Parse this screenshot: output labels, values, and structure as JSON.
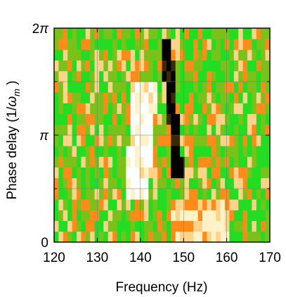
{
  "chart_data": {
    "type": "heatmap",
    "title": "",
    "xlabel": "Frequency (Hz)",
    "ylabel_parts": {
      "prefix": "Phase delay (1/",
      "omega": "ω",
      "sub": "m",
      "suffix": " )"
    },
    "x_ticks": [
      "120",
      "130",
      "140",
      "150",
      "160",
      "170"
    ],
    "y_ticks": [
      {
        "base": "0",
        "sup": ""
      },
      {
        "base": "π",
        "sup": ""
      },
      {
        "base": "π",
        "sup": "2"
      }
    ],
    "xlim": [
      120,
      170
    ],
    "ylim_in_pi": [
      0,
      2
    ],
    "frequency_bins": [
      121.5,
      122.5,
      123.5,
      124.5,
      125.5,
      126.5,
      127.5,
      128.5,
      129.5,
      130.5,
      131.5,
      132.5,
      133.5,
      134.5,
      135.5,
      136.5,
      137.5,
      138.5,
      139.5,
      140.5,
      141.5,
      142.5,
      143.5,
      144.5,
      145.5,
      146.5,
      147.5,
      148.5,
      149.5,
      150.5,
      151.5,
      152.5,
      153.5,
      154.5,
      155.5,
      156.5,
      157.5,
      158.5,
      159.5,
      160.5,
      161.5,
      162.5,
      163.5,
      164.5,
      165.5,
      166.5,
      167.5,
      168.5
    ],
    "phase_bins_in_pi": [
      0.05,
      0.15,
      0.25,
      0.35,
      0.45,
      0.55,
      0.65,
      0.75,
      0.85,
      0.95,
      1.05,
      1.15,
      1.25,
      1.35,
      1.45,
      1.55,
      1.65,
      1.75,
      1.85,
      1.95
    ],
    "colormap": [
      "#000000",
      "#3a2a00",
      "#ffffff",
      "#fff2c8",
      "#ffd48a",
      "#ff8c1a",
      "#7ac21a",
      "#22dd22"
    ],
    "colors": {
      "grid": "#777777",
      "frame": "#000000"
    }
  }
}
